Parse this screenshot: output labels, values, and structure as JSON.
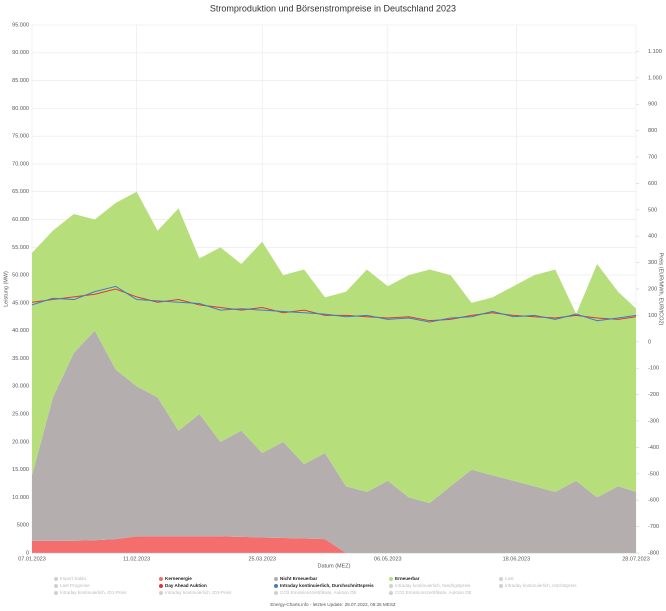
{
  "chart_data": {
    "type": "stacked-area-line",
    "title": "Stromproduktion und Börsenstrompreise in Deutschland 2023",
    "x_label": "Datum (MEZ)",
    "y_label": "Leistung (MW)",
    "y2_label": "Preis (EUR/MWh, EUR/tCO2)",
    "footer": "Energy-Charts.info - letztes Update: 28.07.2023, 08:35 MESZ",
    "x": [
      "07.01.2023",
      "14.01.2023",
      "21.01.2023",
      "28.01.2023",
      "04.02.2023",
      "11.02.2023",
      "18.02.2023",
      "25.02.2023",
      "04.03.2023",
      "11.03.2023",
      "18.03.2023",
      "25.03.2023",
      "01.04.2023",
      "08.04.2023",
      "15.04.2023",
      "22.04.2023",
      "29.04.2023",
      "06.05.2023",
      "13.05.2023",
      "20.05.2023",
      "27.05.2023",
      "03.06.2023",
      "10.06.2023",
      "17.06.2023",
      "24.06.2023",
      "01.07.2023",
      "08.07.2023",
      "15.07.2023",
      "22.07.2023",
      "28.07.2023"
    ],
    "xlim": [
      "07.01.2023",
      "28.07.2023"
    ],
    "xticks": [
      "07.01.2023",
      "11.02.2023",
      "25.03.2023",
      "06.05.2023",
      "18.06.2023",
      "28.07.2023"
    ],
    "ylim": [
      0,
      95000
    ],
    "yticks": [
      0,
      {
        "value": 5000,
        "label": "5000"
      },
      {
        "value": 10000,
        "label": "10.000"
      },
      {
        "value": 15000,
        "label": "15.000"
      },
      {
        "value": 20000,
        "label": "20.000"
      },
      {
        "value": 25000,
        "label": "25.000"
      },
      {
        "value": 30000,
        "label": "30.000"
      },
      {
        "value": 35000,
        "label": "35.000"
      },
      {
        "value": 40000,
        "label": "40.000"
      },
      {
        "value": 45000,
        "label": "45.000"
      },
      {
        "value": 50000,
        "label": "50.000"
      },
      {
        "value": 55000,
        "label": "55.000"
      },
      {
        "value": 60000,
        "label": "60.000"
      },
      {
        "value": 65000,
        "label": "65.000"
      },
      {
        "value": 70000,
        "label": "70.000"
      },
      {
        "value": 75000,
        "label": "75.000"
      },
      {
        "value": 80000,
        "label": "80.000"
      },
      {
        "value": 85000,
        "label": "85.000"
      },
      {
        "value": 90000,
        "label": "90.000"
      },
      {
        "value": 95000,
        "label": "95.000"
      }
    ],
    "y2lim": [
      -800,
      1200
    ],
    "y2ticks": [
      -800,
      -700,
      -600,
      -500,
      -400,
      -300,
      -200,
      -100,
      0,
      100,
      200,
      300,
      400,
      500,
      600,
      700,
      800,
      900,
      {
        "value": 1000,
        "label": "1.000"
      },
      {
        "value": 1100,
        "label": "1.100"
      }
    ],
    "grid": true,
    "series": [
      {
        "name": "Kernenergie",
        "color": "#f46e6e",
        "stack": true,
        "values": [
          2200,
          2200,
          2200,
          2300,
          2500,
          3000,
          3000,
          3000,
          3000,
          3000,
          2900,
          2800,
          2700,
          2600,
          2500,
          0,
          0,
          0,
          0,
          0,
          0,
          0,
          0,
          0,
          0,
          0,
          0,
          0,
          0,
          0
        ]
      },
      {
        "name": "Nicht Erneuerbar",
        "color": "#b4afae",
        "stack": true,
        "values": [
          11800,
          25800,
          33800,
          37700,
          30500,
          27000,
          25000,
          19000,
          22000,
          17000,
          19100,
          15200,
          17300,
          13400,
          15500,
          12000,
          11000,
          13000,
          10000,
          9000,
          12000,
          15000,
          14000,
          13000,
          12000,
          11000,
          13000,
          10000,
          12000,
          11000
        ]
      },
      {
        "name": "Erneuerbar",
        "color": "#b6df7c",
        "stack": true,
        "values": [
          40000,
          30000,
          25000,
          20000,
          30000,
          35000,
          30000,
          40000,
          28000,
          35000,
          30000,
          38000,
          30000,
          35000,
          28000,
          35000,
          40000,
          35000,
          40000,
          42000,
          38000,
          30000,
          32000,
          35000,
          38000,
          40000,
          30000,
          42000,
          35000,
          33000
        ]
      },
      {
        "name": "Day Ahead Auktion",
        "color": "#e0343b",
        "axis": "y2",
        "values": [
          150,
          160,
          170,
          180,
          200,
          170,
          150,
          160,
          140,
          130,
          120,
          130,
          110,
          120,
          100,
          100,
          95,
          90,
          95,
          80,
          85,
          100,
          110,
          100,
          95,
          90,
          100,
          90,
          85,
          95
        ]
      },
      {
        "name": "Intraday kontinuierlich, Durchschnittspreis",
        "color": "#3d7fc2",
        "axis": "y2",
        "values": [
          140,
          165,
          160,
          190,
          210,
          160,
          155,
          150,
          145,
          120,
          125,
          120,
          115,
          110,
          105,
          95,
          100,
          85,
          90,
          75,
          90,
          95,
          115,
          95,
          100,
          85,
          105,
          80,
          90,
          100
        ]
      }
    ],
    "hidden_series": [
      {
        "name": "Import Saldo"
      },
      {
        "name": "Last"
      },
      {
        "name": "Last Prognose"
      },
      {
        "name": "Intraday kontinuierlich, Niedrigstpreis"
      },
      {
        "name": "Intraday kontinuierlich, Höchstpreis"
      },
      {
        "name": "Intraday kontinuierlich, ID1-Preis"
      },
      {
        "name": "Intraday kontinuierlich, ID3-Preis"
      },
      {
        "name": "CO2 Emissionszertifikate, Auktion DE"
      },
      {
        "name": "CO2 Emissionszertifikate, Auktion DE"
      }
    ]
  }
}
